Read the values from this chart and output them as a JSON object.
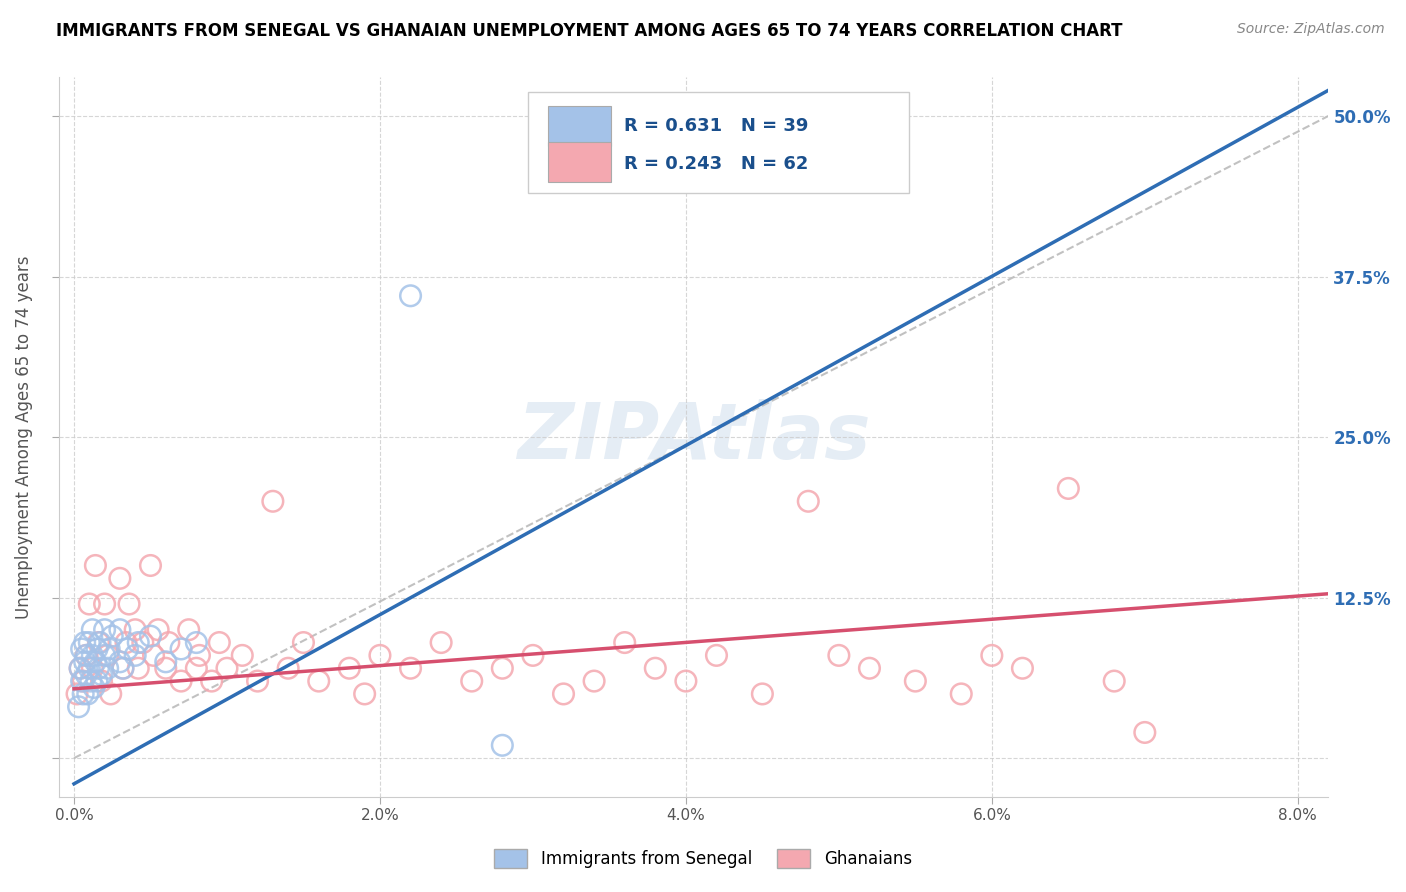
{
  "title": "IMMIGRANTS FROM SENEGAL VS GHANAIAN UNEMPLOYMENT AMONG AGES 65 TO 74 YEARS CORRELATION CHART",
  "source": "Source: ZipAtlas.com",
  "ylabel": "Unemployment Among Ages 65 to 74 years",
  "x_ticks": [
    0.0,
    0.02,
    0.04,
    0.06,
    0.08
  ],
  "x_tick_labels": [
    "0.0%",
    "2.0%",
    "4.0%",
    "6.0%",
    "8.0%"
  ],
  "y_ticks": [
    0.0,
    0.125,
    0.25,
    0.375,
    0.5
  ],
  "y_tick_labels_right": [
    "",
    "12.5%",
    "25.0%",
    "37.5%",
    "50.0%"
  ],
  "xlim": [
    -0.001,
    0.082
  ],
  "ylim": [
    -0.03,
    0.53
  ],
  "legend_labels": [
    "Immigrants from Senegal",
    "Ghanaians"
  ],
  "R_senegal": 0.631,
  "N_senegal": 39,
  "R_ghanaian": 0.243,
  "N_ghanaian": 62,
  "blue_scatter_color": "#a4c2e8",
  "pink_scatter_color": "#f4a8b0",
  "blue_line_color": "#2e6db4",
  "pink_line_color": "#d64f6e",
  "dashed_line_color": "#bbbbbb",
  "grid_color": "#cccccc",
  "right_tick_color": "#2e6db4",
  "senegal_line_x0": 0.0,
  "senegal_line_y0": -0.02,
  "senegal_line_x1": 0.082,
  "senegal_line_y1": 0.52,
  "ghanaian_line_x0": 0.0,
  "ghanaian_line_y0": 0.054,
  "ghanaian_line_x1": 0.082,
  "ghanaian_line_y1": 0.128,
  "senegal_x": [
    0.0003,
    0.0004,
    0.0005,
    0.0005,
    0.0006,
    0.0007,
    0.0007,
    0.0008,
    0.0008,
    0.0009,
    0.001,
    0.001,
    0.0011,
    0.0012,
    0.0012,
    0.0013,
    0.0014,
    0.0015,
    0.0015,
    0.0016,
    0.0017,
    0.0018,
    0.002,
    0.002,
    0.0022,
    0.0023,
    0.0025,
    0.003,
    0.003,
    0.0032,
    0.0035,
    0.004,
    0.0042,
    0.005,
    0.006,
    0.007,
    0.008,
    0.022,
    0.028
  ],
  "senegal_y": [
    0.04,
    0.07,
    0.06,
    0.085,
    0.05,
    0.075,
    0.09,
    0.065,
    0.08,
    0.05,
    0.07,
    0.09,
    0.06,
    0.08,
    0.1,
    0.055,
    0.075,
    0.06,
    0.085,
    0.07,
    0.09,
    0.065,
    0.08,
    0.1,
    0.07,
    0.085,
    0.095,
    0.075,
    0.1,
    0.07,
    0.085,
    0.08,
    0.09,
    0.095,
    0.075,
    0.085,
    0.09,
    0.36,
    0.01
  ],
  "ghanaian_x": [
    0.0002,
    0.0004,
    0.0006,
    0.0008,
    0.001,
    0.0012,
    0.0014,
    0.0016,
    0.0018,
    0.002,
    0.0022,
    0.0024,
    0.003,
    0.0032,
    0.0034,
    0.0036,
    0.004,
    0.0042,
    0.0045,
    0.005,
    0.0052,
    0.0055,
    0.006,
    0.0062,
    0.007,
    0.0075,
    0.008,
    0.0082,
    0.009,
    0.0095,
    0.01,
    0.011,
    0.012,
    0.013,
    0.014,
    0.015,
    0.016,
    0.018,
    0.019,
    0.02,
    0.022,
    0.024,
    0.026,
    0.028,
    0.03,
    0.032,
    0.034,
    0.036,
    0.038,
    0.04,
    0.042,
    0.045,
    0.048,
    0.05,
    0.052,
    0.055,
    0.058,
    0.06,
    0.062,
    0.065,
    0.068,
    0.07
  ],
  "ghanaian_y": [
    0.05,
    0.07,
    0.06,
    0.08,
    0.12,
    0.07,
    0.15,
    0.09,
    0.06,
    0.12,
    0.08,
    0.05,
    0.14,
    0.07,
    0.09,
    0.12,
    0.1,
    0.07,
    0.09,
    0.15,
    0.08,
    0.1,
    0.07,
    0.09,
    0.06,
    0.1,
    0.07,
    0.08,
    0.06,
    0.09,
    0.07,
    0.08,
    0.06,
    0.2,
    0.07,
    0.09,
    0.06,
    0.07,
    0.05,
    0.08,
    0.07,
    0.09,
    0.06,
    0.07,
    0.08,
    0.05,
    0.06,
    0.09,
    0.07,
    0.06,
    0.08,
    0.05,
    0.2,
    0.08,
    0.07,
    0.06,
    0.05,
    0.08,
    0.07,
    0.21,
    0.06,
    0.02
  ]
}
